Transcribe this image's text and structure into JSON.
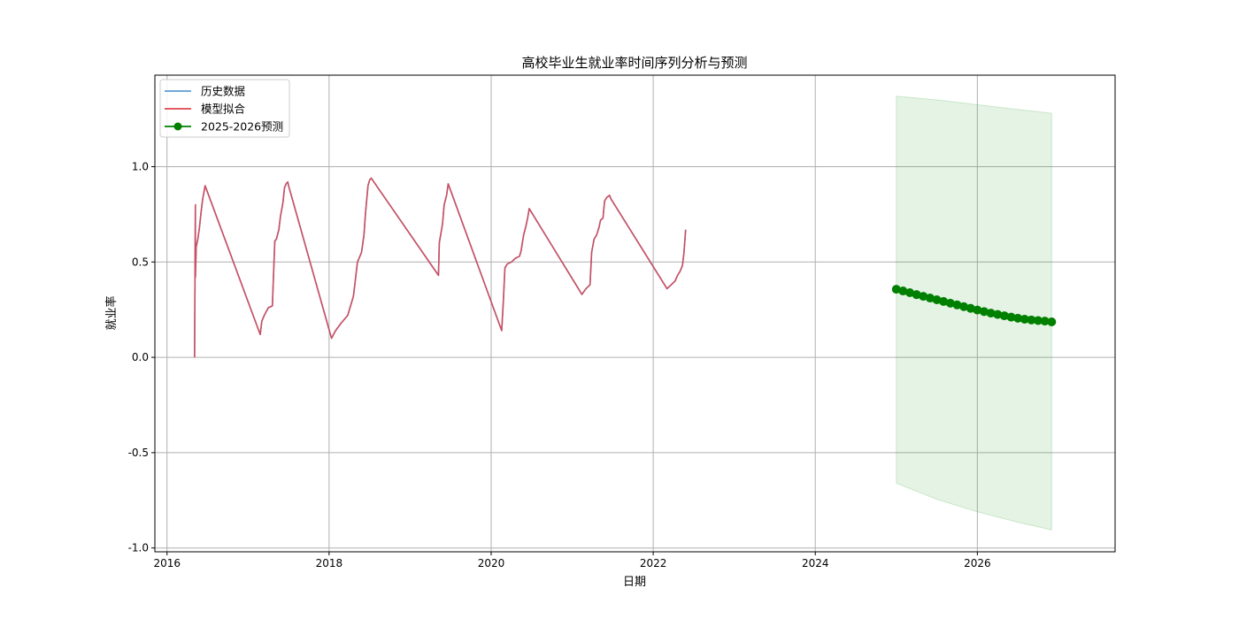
{
  "chart_data": {
    "type": "line",
    "title": "高校毕业生就业率时间序列分析与预测",
    "xlabel": "日期",
    "ylabel": "就业率",
    "xlim": [
      2015.85,
      2027.7
    ],
    "ylim": [
      -1.02,
      1.48
    ],
    "x_ticks": [
      2016,
      2018,
      2020,
      2022,
      2024,
      2026
    ],
    "x_tick_labels": [
      "2016",
      "2018",
      "2020",
      "2022",
      "2024",
      "2026"
    ],
    "y_ticks": [
      -1.0,
      -0.5,
      0.0,
      0.5,
      1.0
    ],
    "y_tick_labels": [
      "-1.0",
      "-0.5",
      "0.0",
      "0.5",
      "1.0"
    ],
    "grid": true,
    "legend_position": "top-left",
    "legend": [
      {
        "label": "历史数据",
        "color": "#5b9bd5",
        "marker": "none"
      },
      {
        "label": "模型拟合",
        "color": "#e0424b",
        "marker": "none"
      },
      {
        "label": "2025-2026预测",
        "color": "#008000",
        "marker": "circle"
      }
    ],
    "series": [
      {
        "name": "历史数据",
        "color": "#5b9bd5",
        "x": [
          2016.34,
          2016.35,
          2016.35,
          2016.36,
          2016.38,
          2016.4,
          2016.42,
          2016.44,
          2016.47,
          2017.15,
          2017.17,
          2017.2,
          2017.25,
          2017.3,
          2017.33,
          2017.35,
          2017.38,
          2017.4,
          2017.43,
          2017.45,
          2017.47,
          2017.49,
          2017.5,
          2018.03,
          2018.08,
          2018.15,
          2018.23,
          2018.3,
          2018.32,
          2018.35,
          2018.38,
          2018.4,
          2018.43,
          2018.45,
          2018.48,
          2018.5,
          2018.52,
          2019.35,
          2019.36,
          2019.38,
          2019.4,
          2019.42,
          2019.45,
          2019.47,
          2020.13,
          2020.15,
          2020.17,
          2020.2,
          2020.25,
          2020.3,
          2020.35,
          2020.37,
          2020.4,
          2020.43,
          2020.45,
          2020.47,
          2021.12,
          2021.17,
          2021.22,
          2021.24,
          2021.27,
          2021.3,
          2021.33,
          2021.35,
          2021.38,
          2021.4,
          2021.43,
          2021.46,
          2021.48,
          2022.17,
          2022.22,
          2022.27,
          2022.3,
          2022.33,
          2022.36,
          2022.38,
          2022.4
        ],
        "y": [
          0.0,
          0.8,
          0.42,
          0.58,
          0.62,
          0.68,
          0.76,
          0.83,
          0.9,
          0.12,
          0.19,
          0.22,
          0.26,
          0.27,
          0.61,
          0.62,
          0.67,
          0.74,
          0.81,
          0.89,
          0.91,
          0.92,
          0.9,
          0.1,
          0.14,
          0.18,
          0.22,
          0.32,
          0.39,
          0.5,
          0.53,
          0.55,
          0.64,
          0.76,
          0.9,
          0.93,
          0.94,
          0.43,
          0.6,
          0.65,
          0.7,
          0.8,
          0.85,
          0.91,
          0.14,
          0.29,
          0.47,
          0.49,
          0.5,
          0.52,
          0.53,
          0.56,
          0.64,
          0.69,
          0.73,
          0.78,
          0.33,
          0.36,
          0.38,
          0.55,
          0.62,
          0.64,
          0.68,
          0.72,
          0.73,
          0.82,
          0.84,
          0.85,
          0.83,
          0.36,
          0.38,
          0.4,
          0.43,
          0.45,
          0.48,
          0.55,
          0.67
        ]
      },
      {
        "name": "模型拟合",
        "color": "#e0424b",
        "x": [
          2016.34,
          2016.35,
          2016.35,
          2016.36,
          2016.38,
          2016.4,
          2016.42,
          2016.44,
          2016.47,
          2017.15,
          2017.17,
          2017.2,
          2017.25,
          2017.3,
          2017.33,
          2017.35,
          2017.38,
          2017.4,
          2017.43,
          2017.45,
          2017.47,
          2017.49,
          2017.5,
          2018.03,
          2018.08,
          2018.15,
          2018.23,
          2018.3,
          2018.32,
          2018.35,
          2018.38,
          2018.4,
          2018.43,
          2018.45,
          2018.48,
          2018.5,
          2018.52,
          2019.35,
          2019.36,
          2019.38,
          2019.4,
          2019.42,
          2019.45,
          2019.47,
          2020.13,
          2020.15,
          2020.17,
          2020.2,
          2020.25,
          2020.3,
          2020.35,
          2020.37,
          2020.4,
          2020.43,
          2020.45,
          2020.47,
          2021.12,
          2021.17,
          2021.22,
          2021.24,
          2021.27,
          2021.3,
          2021.33,
          2021.35,
          2021.38,
          2021.4,
          2021.43,
          2021.46,
          2021.48,
          2022.17,
          2022.22,
          2022.27,
          2022.3,
          2022.33,
          2022.36,
          2022.38,
          2022.4
        ],
        "y": [
          0.0,
          0.8,
          0.42,
          0.58,
          0.62,
          0.68,
          0.76,
          0.83,
          0.9,
          0.12,
          0.19,
          0.22,
          0.26,
          0.27,
          0.61,
          0.62,
          0.67,
          0.74,
          0.81,
          0.89,
          0.91,
          0.92,
          0.9,
          0.1,
          0.14,
          0.18,
          0.22,
          0.32,
          0.39,
          0.5,
          0.53,
          0.55,
          0.64,
          0.76,
          0.9,
          0.93,
          0.94,
          0.43,
          0.6,
          0.65,
          0.7,
          0.8,
          0.85,
          0.91,
          0.14,
          0.29,
          0.47,
          0.49,
          0.5,
          0.52,
          0.53,
          0.56,
          0.64,
          0.69,
          0.73,
          0.78,
          0.33,
          0.36,
          0.38,
          0.55,
          0.62,
          0.64,
          0.68,
          0.72,
          0.73,
          0.82,
          0.84,
          0.85,
          0.83,
          0.36,
          0.38,
          0.4,
          0.43,
          0.45,
          0.48,
          0.55,
          0.67
        ]
      },
      {
        "name": "2025-2026预测",
        "color": "#008000",
        "marker": "circle",
        "x": [
          2025.0,
          2025.083,
          2025.167,
          2025.25,
          2025.333,
          2025.417,
          2025.5,
          2025.583,
          2025.667,
          2025.75,
          2025.833,
          2025.917,
          2026.0,
          2026.083,
          2026.167,
          2026.25,
          2026.333,
          2026.417,
          2026.5,
          2026.583,
          2026.667,
          2026.75,
          2026.833,
          2026.917
        ],
        "y": [
          0.357,
          0.348,
          0.339,
          0.329,
          0.32,
          0.311,
          0.302,
          0.293,
          0.284,
          0.275,
          0.266,
          0.257,
          0.248,
          0.24,
          0.232,
          0.225,
          0.218,
          0.211,
          0.205,
          0.2,
          0.196,
          0.193,
          0.19,
          0.186
        ]
      }
    ],
    "confidence_band": {
      "color": "#2ca02c",
      "opacity": 0.12,
      "x": [
        2025.0,
        2025.5,
        2026.0,
        2026.5,
        2026.917
      ],
      "upper": [
        1.37,
        1.35,
        1.325,
        1.3,
        1.28
      ],
      "lower": [
        -0.66,
        -0.745,
        -0.81,
        -0.865,
        -0.905
      ]
    }
  }
}
